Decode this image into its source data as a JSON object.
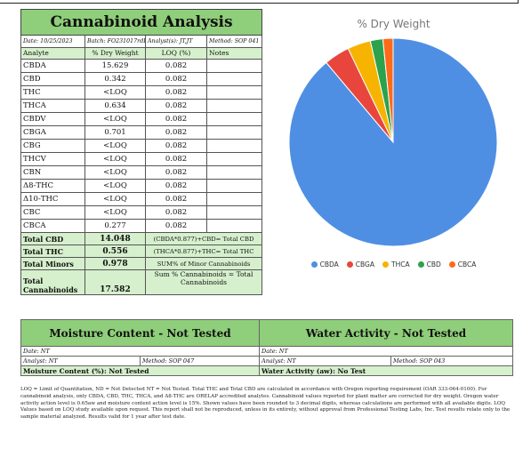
{
  "cannabinoid": {
    "title": "Cannabinoid Analysis",
    "meta": {
      "date": "Date: 10/25/2023",
      "batch": "Batch: FO231017rdB",
      "analyst": "Analyst(s): JT,JT",
      "method": "Method: SOP 041"
    },
    "headers": [
      "Analyte",
      "% Dry Weight",
      "LOQ (%)",
      "Notes"
    ],
    "rows": [
      {
        "analyte": "CBDA",
        "dry": "15.629",
        "loq": "0.082"
      },
      {
        "analyte": "CBD",
        "dry": "0.342",
        "loq": "0.082"
      },
      {
        "analyte": "THC",
        "dry": "<LOQ",
        "loq": "0.082"
      },
      {
        "analyte": "THCA",
        "dry": "0.634",
        "loq": "0.082"
      },
      {
        "analyte": "CBDV",
        "dry": "<LOQ",
        "loq": "0.082"
      },
      {
        "analyte": "CBGA",
        "dry": "0.701",
        "loq": "0.082"
      },
      {
        "analyte": "CBG",
        "dry": "<LOQ",
        "loq": "0.082"
      },
      {
        "analyte": "THCV",
        "dry": "<LOQ",
        "loq": "0.082"
      },
      {
        "analyte": "CBN",
        "dry": "<LOQ",
        "loq": "0.082"
      },
      {
        "analyte": "Δ8-THC",
        "dry": "<LOQ",
        "loq": "0.082"
      },
      {
        "analyte": "Δ10-THC",
        "dry": "<LOQ",
        "loq": "0.082"
      },
      {
        "analyte": "CBC",
        "dry": "<LOQ",
        "loq": "0.082"
      },
      {
        "analyte": "CBCA",
        "dry": "0.277",
        "loq": "0.082"
      }
    ],
    "totals": {
      "cbd": {
        "label": "Total CBD",
        "value": "14.048",
        "note": "(CBDA*0.877)+CBD= Total CBD"
      },
      "thc": {
        "label": "Total THC",
        "value": "0.556",
        "note": "(THCA*0.877)+THC= Total THC"
      },
      "minors": {
        "label": "Total Minors",
        "value": "0.978",
        "note": "SUM% of Minor Cannabinoids"
      },
      "cannabinoids": {
        "label": "Total Cannabinoids",
        "value": "17.582",
        "note": "Sum % Cannabinoids = Total Cannabinoids"
      }
    }
  },
  "chart_data": {
    "type": "pie",
    "title": "% Dry Weight",
    "legend_position": "bottom",
    "categories": [
      "CBDA",
      "CBGA",
      "THCA",
      "CBD",
      "CBCA"
    ],
    "values": [
      15.629,
      0.701,
      0.634,
      0.342,
      0.277
    ],
    "colors": [
      "#4f8fe3",
      "#e8463c",
      "#f6b400",
      "#2ca24d",
      "#ff6a1a"
    ]
  },
  "moisture": {
    "title": "Moisture Content - Not Tested",
    "date": "Date: NT",
    "analyst": "Analyst: NT",
    "method": "Method: SOP 047",
    "result": "Moisture Content (%): Not Tested"
  },
  "water": {
    "title": "Water Activity - Not Tested",
    "date": "Date: NT",
    "analyst": "Analyst: NT",
    "method": "Method: SOP 043",
    "result": "Water Activity (aw): No Test"
  },
  "footnote": "LOQ = Limit of Quantitation, ND = Not Detected NT = Not Tested. Total THC and Total CBD are calculated in accordance with Oregon reporting requirement (OAR 333-064-0100). For cannabinoid analysis, only CBDA, CBD, THC, THCA, and Δ8-THC are ORELAP accredited analytes. Cannabinoid values reported for plant matter are corrected for dry weight. Oregon water activity action level is 0.65aw and moisture content action level is 15%. Shown values have been rounded to 3 decimal digits, whereas calculations are performed with all available digits. LOQ Values based on LOQ study available upon request. This report shall not be reproduced, unless in its entirety, without approval from Professional Testing Labs, Inc. Test results relate only to the sample material analyzed. Results valid for 1 year after test date."
}
